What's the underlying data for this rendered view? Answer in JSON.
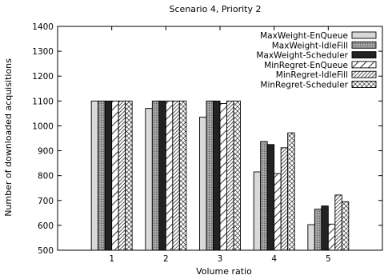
{
  "chart_data": {
    "type": "bar",
    "title": "Scenario 4, Priority 2",
    "xlabel": "Volume ratio",
    "ylabel": "Number of downloaded acquisitions",
    "categories": [
      "1",
      "2",
      "3",
      "4",
      "5"
    ],
    "ylim": [
      500,
      1400
    ],
    "yticks": [
      500,
      600,
      700,
      800,
      900,
      1000,
      1100,
      1200,
      1300,
      1400
    ],
    "grid": false,
    "legend_position": "top-right",
    "series": [
      {
        "name": "MaxWeight-EnQueue",
        "pattern": "light-gray-solid",
        "values": [
          1100,
          1070,
          1035,
          815,
          603
        ]
      },
      {
        "name": "MaxWeight-IdleFill",
        "pattern": "gray-stipple",
        "values": [
          1100,
          1100,
          1100,
          937,
          665
        ]
      },
      {
        "name": "MaxWeight-Scheduler",
        "pattern": "dark-solid",
        "values": [
          1100,
          1100,
          1100,
          925,
          678
        ]
      },
      {
        "name": "MinRegret-EnQueue",
        "pattern": "sparse-diagonal",
        "values": [
          1100,
          1100,
          1090,
          808,
          605
        ]
      },
      {
        "name": "MinRegret-IdleFill",
        "pattern": "dense-diagonal",
        "values": [
          1100,
          1100,
          1100,
          912,
          722
        ]
      },
      {
        "name": "MinRegret-Scheduler",
        "pattern": "crosshatch",
        "values": [
          1100,
          1100,
          1100,
          972,
          695
        ]
      }
    ]
  }
}
